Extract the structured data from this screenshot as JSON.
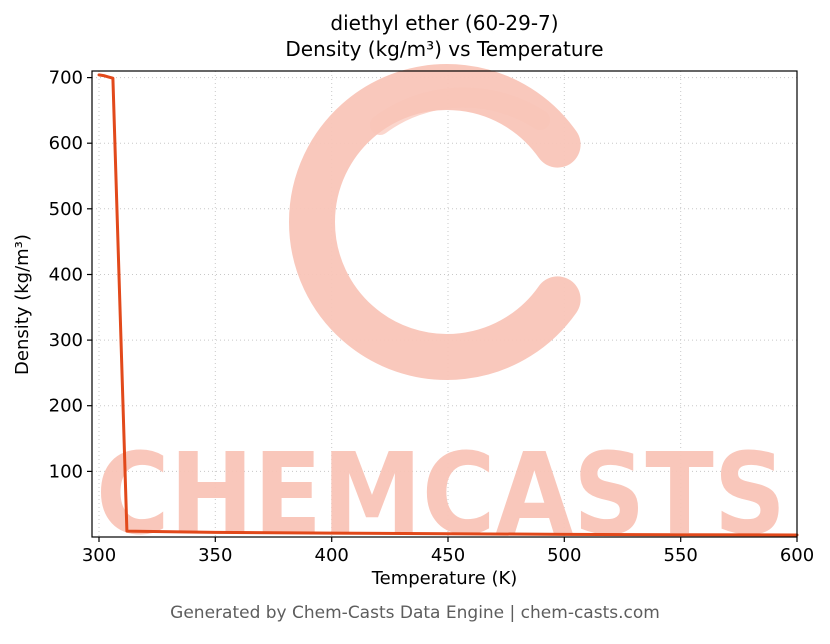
{
  "chart_data": {
    "type": "line",
    "title_line1": "diethyl ether (60-29-7)",
    "title_line2": "Density (kg/m³) vs Temperature",
    "xlabel": "Temperature (K)",
    "ylabel": "Density (kg/m³)",
    "xlim": [
      297,
      600
    ],
    "ylim": [
      0,
      710
    ],
    "xticks": [
      300,
      350,
      400,
      450,
      500,
      550,
      600
    ],
    "yticks": [
      100,
      200,
      300,
      400,
      500,
      600,
      700
    ],
    "grid": "dotted",
    "grid_color": "#c8c8c8",
    "line_color": "#e2491b",
    "legend": "none",
    "series": [
      {
        "name": "density",
        "points": [
          [
            300,
            704
          ],
          [
            302,
            703
          ],
          [
            304,
            701
          ],
          [
            306,
            699
          ],
          [
            312,
            9
          ],
          [
            350,
            7
          ],
          [
            400,
            6
          ],
          [
            450,
            5
          ],
          [
            500,
            4
          ],
          [
            550,
            3.5
          ],
          [
            600,
            3
          ]
        ]
      }
    ]
  },
  "watermark": {
    "logo": "chemcasts-c-swirl",
    "text": "CHEMCASTS",
    "color": "#f9c5b8"
  },
  "footer": {
    "caption": "Generated by Chem-Casts Data Engine | chem-casts.com"
  }
}
